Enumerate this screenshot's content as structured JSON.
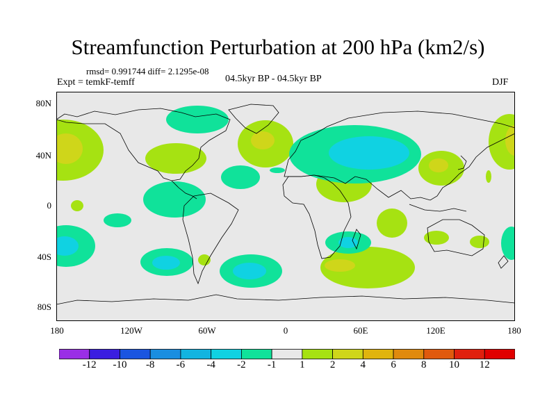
{
  "title": "Streamfunction Perturbation at 200 hPa (km2/s)",
  "stats": "rmsd= 0.991744 diff= 2.1295e-08",
  "expt": "Expt = temkF-temff",
  "period": "04.5kyr BP - 04.5kyr BP",
  "season": "DJF",
  "y_axis_labels": [
    "80N",
    "40N",
    "0",
    "40S",
    "80S"
  ],
  "x_axis_labels": [
    "180",
    "120W",
    "60W",
    "0",
    "60E",
    "120E",
    "180"
  ],
  "colorbar": {
    "labels": [
      "-12",
      "-10",
      "-8",
      "-6",
      "-4",
      "-2",
      "-1",
      "1",
      "2",
      "4",
      "6",
      "8",
      "10",
      "12"
    ],
    "colors": [
      "#9a2ee6",
      "#3b1ee0",
      "#1a55e0",
      "#1a8ee0",
      "#12b4e0",
      "#10d2e2",
      "#10e29a",
      "#e8e8e8",
      "#a6e212",
      "#cfd61a",
      "#e0b40e",
      "#e08a0e",
      "#e05a0e",
      "#e0200e",
      "#e00000"
    ]
  },
  "fill_colors": {
    "background": "#e8e8e8",
    "neg1": "#10e29a",
    "neg2": "#10d2e2",
    "pos1": "#a6e212",
    "pos2": "#cfd61a",
    "coast": "#000000"
  }
}
